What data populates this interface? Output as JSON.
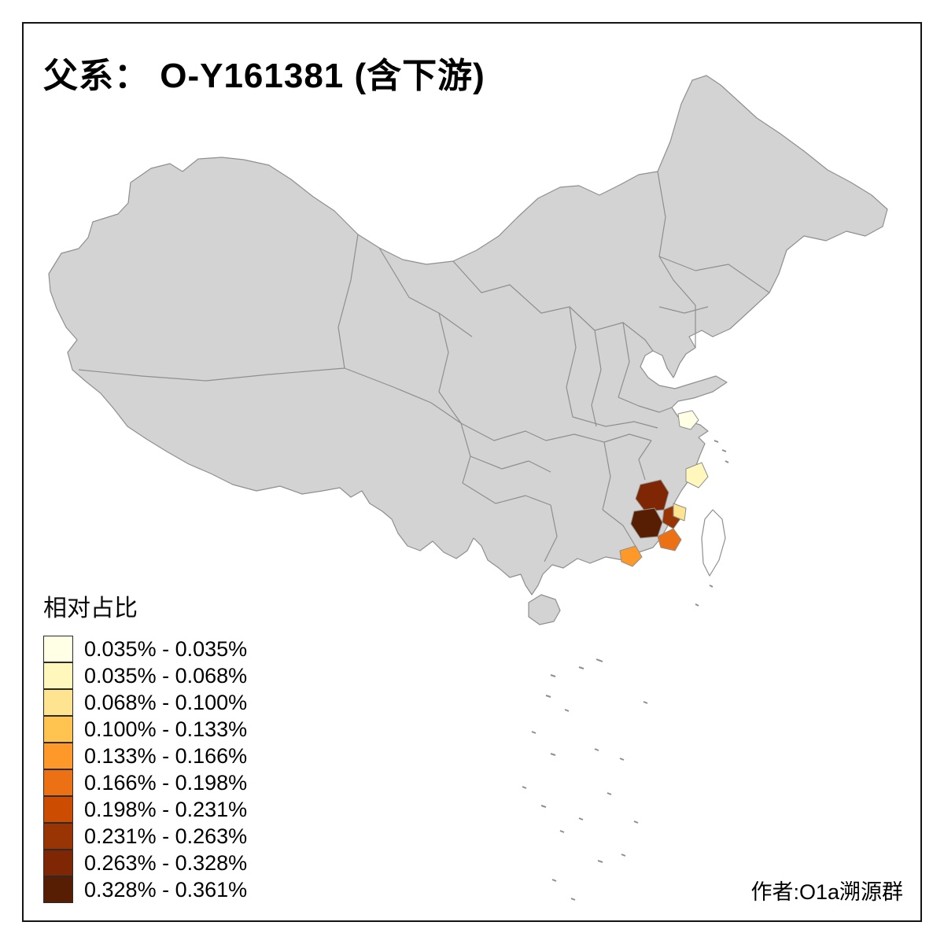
{
  "title": "父系： O-Y161381 (含下游)",
  "author": "作者:O1a溯源群",
  "legend": {
    "title": "相对占比",
    "classes": [
      {
        "label": "0.035% - 0.035%",
        "color": "#FFFFE5"
      },
      {
        "label": "0.035% - 0.068%",
        "color": "#FFF7BC"
      },
      {
        "label": "0.068% - 0.100%",
        "color": "#FEE391"
      },
      {
        "label": "0.100% - 0.133%",
        "color": "#FEC44F"
      },
      {
        "label": "0.133% - 0.166%",
        "color": "#FE9929"
      },
      {
        "label": "0.166% - 0.198%",
        "color": "#EC7014"
      },
      {
        "label": "0.198% - 0.231%",
        "color": "#CC4C02"
      },
      {
        "label": "0.231% - 0.263%",
        "color": "#993404"
      },
      {
        "label": "0.263% - 0.328%",
        "color": "#7F2704"
      },
      {
        "label": "0.328% - 0.361%",
        "color": "#571E03"
      }
    ]
  },
  "map": {
    "base_fill": "#D3D3D3",
    "boundary_color": "#8F8F8F",
    "no_data_fill": "#FFFFFF",
    "regions": [
      {
        "id": "highlight-1",
        "color": "#7F2704"
      },
      {
        "id": "highlight-2",
        "color": "#571E03"
      },
      {
        "id": "highlight-3",
        "color": "#993404"
      },
      {
        "id": "highlight-4",
        "color": "#EC7014"
      },
      {
        "id": "highlight-5",
        "color": "#FEE391"
      },
      {
        "id": "highlight-6",
        "color": "#FFF7BC"
      },
      {
        "id": "highlight-7",
        "color": "#FFFFE5"
      },
      {
        "id": "highlight-8",
        "color": "#FE9929"
      }
    ]
  }
}
